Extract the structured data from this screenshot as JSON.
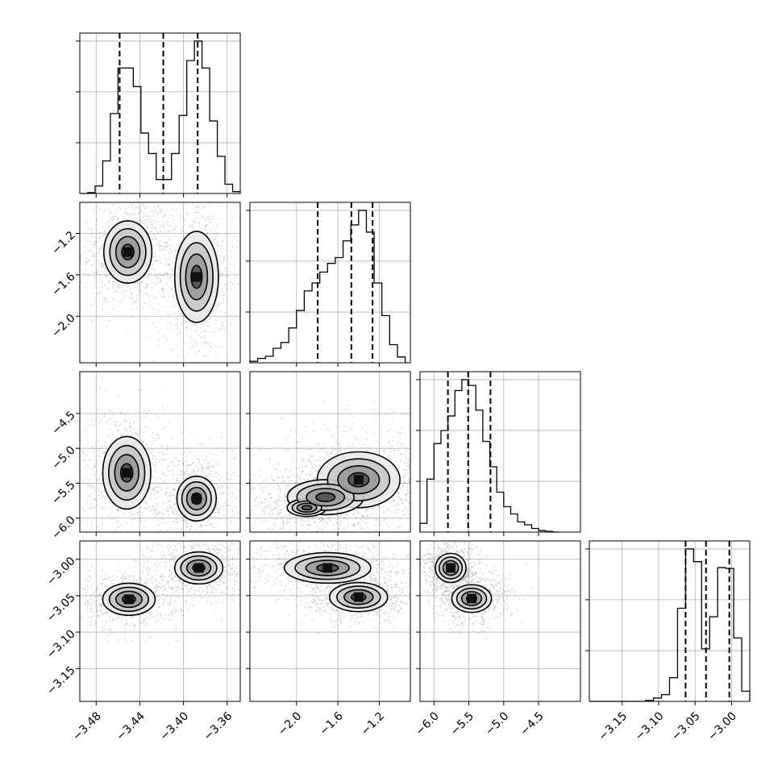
{
  "chart_data": {
    "type": "corner",
    "grid": true,
    "parameters": [
      {
        "range": [
          -3.495,
          -3.348
        ],
        "ticks": [
          -3.48,
          -3.44,
          -3.4,
          -3.36
        ],
        "tick_labels": [
          "−3.48",
          "−3.44",
          "−3.40",
          "−3.36"
        ],
        "quantiles": [
          -3.4585,
          -3.4185,
          -3.387
        ],
        "histogram": {
          "bins": [
            -3.495,
            -3.488,
            -3.481,
            -3.474,
            -3.467,
            -3.46,
            -3.453,
            -3.446,
            -3.439,
            -3.432,
            -3.425,
            -3.418,
            -3.411,
            -3.404,
            -3.397,
            -3.39,
            -3.383,
            -3.376,
            -3.369,
            -3.362,
            -3.355,
            -3.348
          ],
          "counts": [
            0,
            1,
            8,
            35,
            86,
            135,
            135,
            115,
            65,
            43,
            15,
            15,
            43,
            84,
            143,
            164,
            135,
            78,
            40,
            10,
            2
          ]
        },
        "blobs": [
          {
            "cx": -3.451,
            "cy": -1.38,
            "sx": 0.011,
            "sy": 0.15,
            "w": 1
          },
          {
            "cx": -3.388,
            "cy": -1.62,
            "sx": 0.01,
            "sy": 0.22,
            "w": 1
          }
        ]
      },
      {
        "range": [
          -2.45,
          -0.9
        ],
        "ticks": [
          -2.0,
          -1.6,
          -1.2
        ],
        "tick_labels": [
          "−2.0",
          "−1.6",
          "−1.2"
        ],
        "quantiles": [
          -1.795,
          -1.47,
          -1.265
        ],
        "histogram": {
          "bins": [
            -2.45,
            -2.375,
            -2.3,
            -2.225,
            -2.15,
            -2.075,
            -2.0,
            -1.925,
            -1.85,
            -1.775,
            -1.7,
            -1.625,
            -1.55,
            -1.475,
            -1.4,
            -1.325,
            -1.25,
            -1.175,
            -1.1,
            -1.025,
            -0.95
          ],
          "counts": [
            2,
            6,
            9,
            20,
            28,
            48,
            72,
            99,
            110,
            125,
            137,
            145,
            168,
            190,
            210,
            180,
            110,
            65,
            25,
            8
          ]
        },
        "blobs": [
          {
            "cx": -1.42,
            "cy": -5.45,
            "sx": 0.22,
            "sy": 0.22,
            "w": 1
          },
          {
            "cx": -1.85,
            "cy": -5.82,
            "sx": 0.18,
            "sy": 0.12,
            "w": 0.5
          }
        ]
      },
      {
        "range": [
          -6.2,
          -3.9
        ],
        "ticks": [
          -6.0,
          -5.5,
          -5.0,
          -4.5
        ],
        "tick_labels": [
          "−6.0",
          "−5.5",
          "−5.0",
          "−4.5"
        ],
        "quantiles": [
          -5.8,
          -5.51,
          -5.19
        ],
        "histogram": {
          "bins": [
            -6.2,
            -6.1,
            -6.0,
            -5.9,
            -5.8,
            -5.7,
            -5.6,
            -5.5,
            -5.4,
            -5.3,
            -5.2,
            -5.1,
            -5.0,
            -4.9,
            -4.8,
            -4.7,
            -4.6,
            -4.5,
            -4.4,
            -4.3,
            -4.2
          ],
          "counts": [
            12,
            73,
            122,
            140,
            160,
            195,
            210,
            202,
            168,
            125,
            90,
            55,
            35,
            25,
            14,
            10,
            5,
            2,
            1,
            0
          ]
        },
        "blobs": [
          {
            "cx": -5.76,
            "cy": -3.012,
            "sx": 0.12,
            "sy": 0.01,
            "w": 1
          },
          {
            "cx": -5.44,
            "cy": -3.052,
            "sx": 0.16,
            "sy": 0.01,
            "w": 0.9
          }
        ]
      },
      {
        "range": [
          -3.195,
          -2.975
        ],
        "ticks": [
          -3.15,
          -3.1,
          -3.05,
          -3.0
        ],
        "tick_labels": [
          "−3.15",
          "−3.10",
          "−3.05",
          "−3.00"
        ],
        "quantiles": [
          -3.063,
          -3.035,
          -3.003
        ],
        "histogram": {
          "bins": [
            -3.195,
            -3.184,
            -3.173,
            -3.162,
            -3.151,
            -3.14,
            -3.129,
            -3.118,
            -3.107,
            -3.096,
            -3.085,
            -3.074,
            -3.063,
            -3.052,
            -3.041,
            -3.03,
            -3.019,
            -3.008,
            -2.997,
            -2.986,
            -2.975
          ],
          "counts": [
            0,
            0,
            0,
            0,
            0,
            0,
            0,
            1,
            4,
            8,
            28,
            110,
            180,
            165,
            62,
            100,
            158,
            157,
            75,
            12
          ]
        },
        "blobs": []
      }
    ],
    "pair_blobs": {
      "1-0": [
        {
          "cx": -3.451,
          "cy": -1.38,
          "sx": 0.011,
          "sy": 0.15,
          "w": 1
        },
        {
          "cx": -3.388,
          "cy": -1.62,
          "sx": 0.01,
          "sy": 0.22,
          "w": 1
        }
      ],
      "2-0": [
        {
          "cx": -3.452,
          "cy": -5.35,
          "sx": 0.011,
          "sy": 0.26,
          "w": 1
        },
        {
          "cx": -3.388,
          "cy": -5.72,
          "sx": 0.009,
          "sy": 0.16,
          "w": 1
        }
      ],
      "3-0": [
        {
          "cx": -3.45,
          "cy": -3.055,
          "sx": 0.012,
          "sy": 0.011,
          "w": 1
        },
        {
          "cx": -3.386,
          "cy": -3.012,
          "sx": 0.011,
          "sy": 0.011,
          "w": 1
        }
      ],
      "2-1": [
        {
          "cx": -1.4,
          "cy": -5.45,
          "sx": 0.2,
          "sy": 0.2,
          "w": 1
        },
        {
          "cx": -1.72,
          "cy": -5.7,
          "sx": 0.22,
          "sy": 0.15,
          "w": 0.7
        },
        {
          "cx": -1.9,
          "cy": -5.85,
          "sx": 0.15,
          "sy": 0.1,
          "w": 0.4
        }
      ],
      "3-1": [
        {
          "cx": -1.4,
          "cy": -3.052,
          "sx": 0.14,
          "sy": 0.01,
          "w": 1
        },
        {
          "cx": -1.7,
          "cy": -3.012,
          "sx": 0.22,
          "sy": 0.011,
          "w": 0.9
        }
      ],
      "3-2": [
        {
          "cx": -5.76,
          "cy": -3.012,
          "sx": 0.11,
          "sy": 0.01,
          "w": 1
        },
        {
          "cx": -5.46,
          "cy": -3.054,
          "sx": 0.15,
          "sy": 0.01,
          "w": 0.9
        }
      ]
    }
  }
}
